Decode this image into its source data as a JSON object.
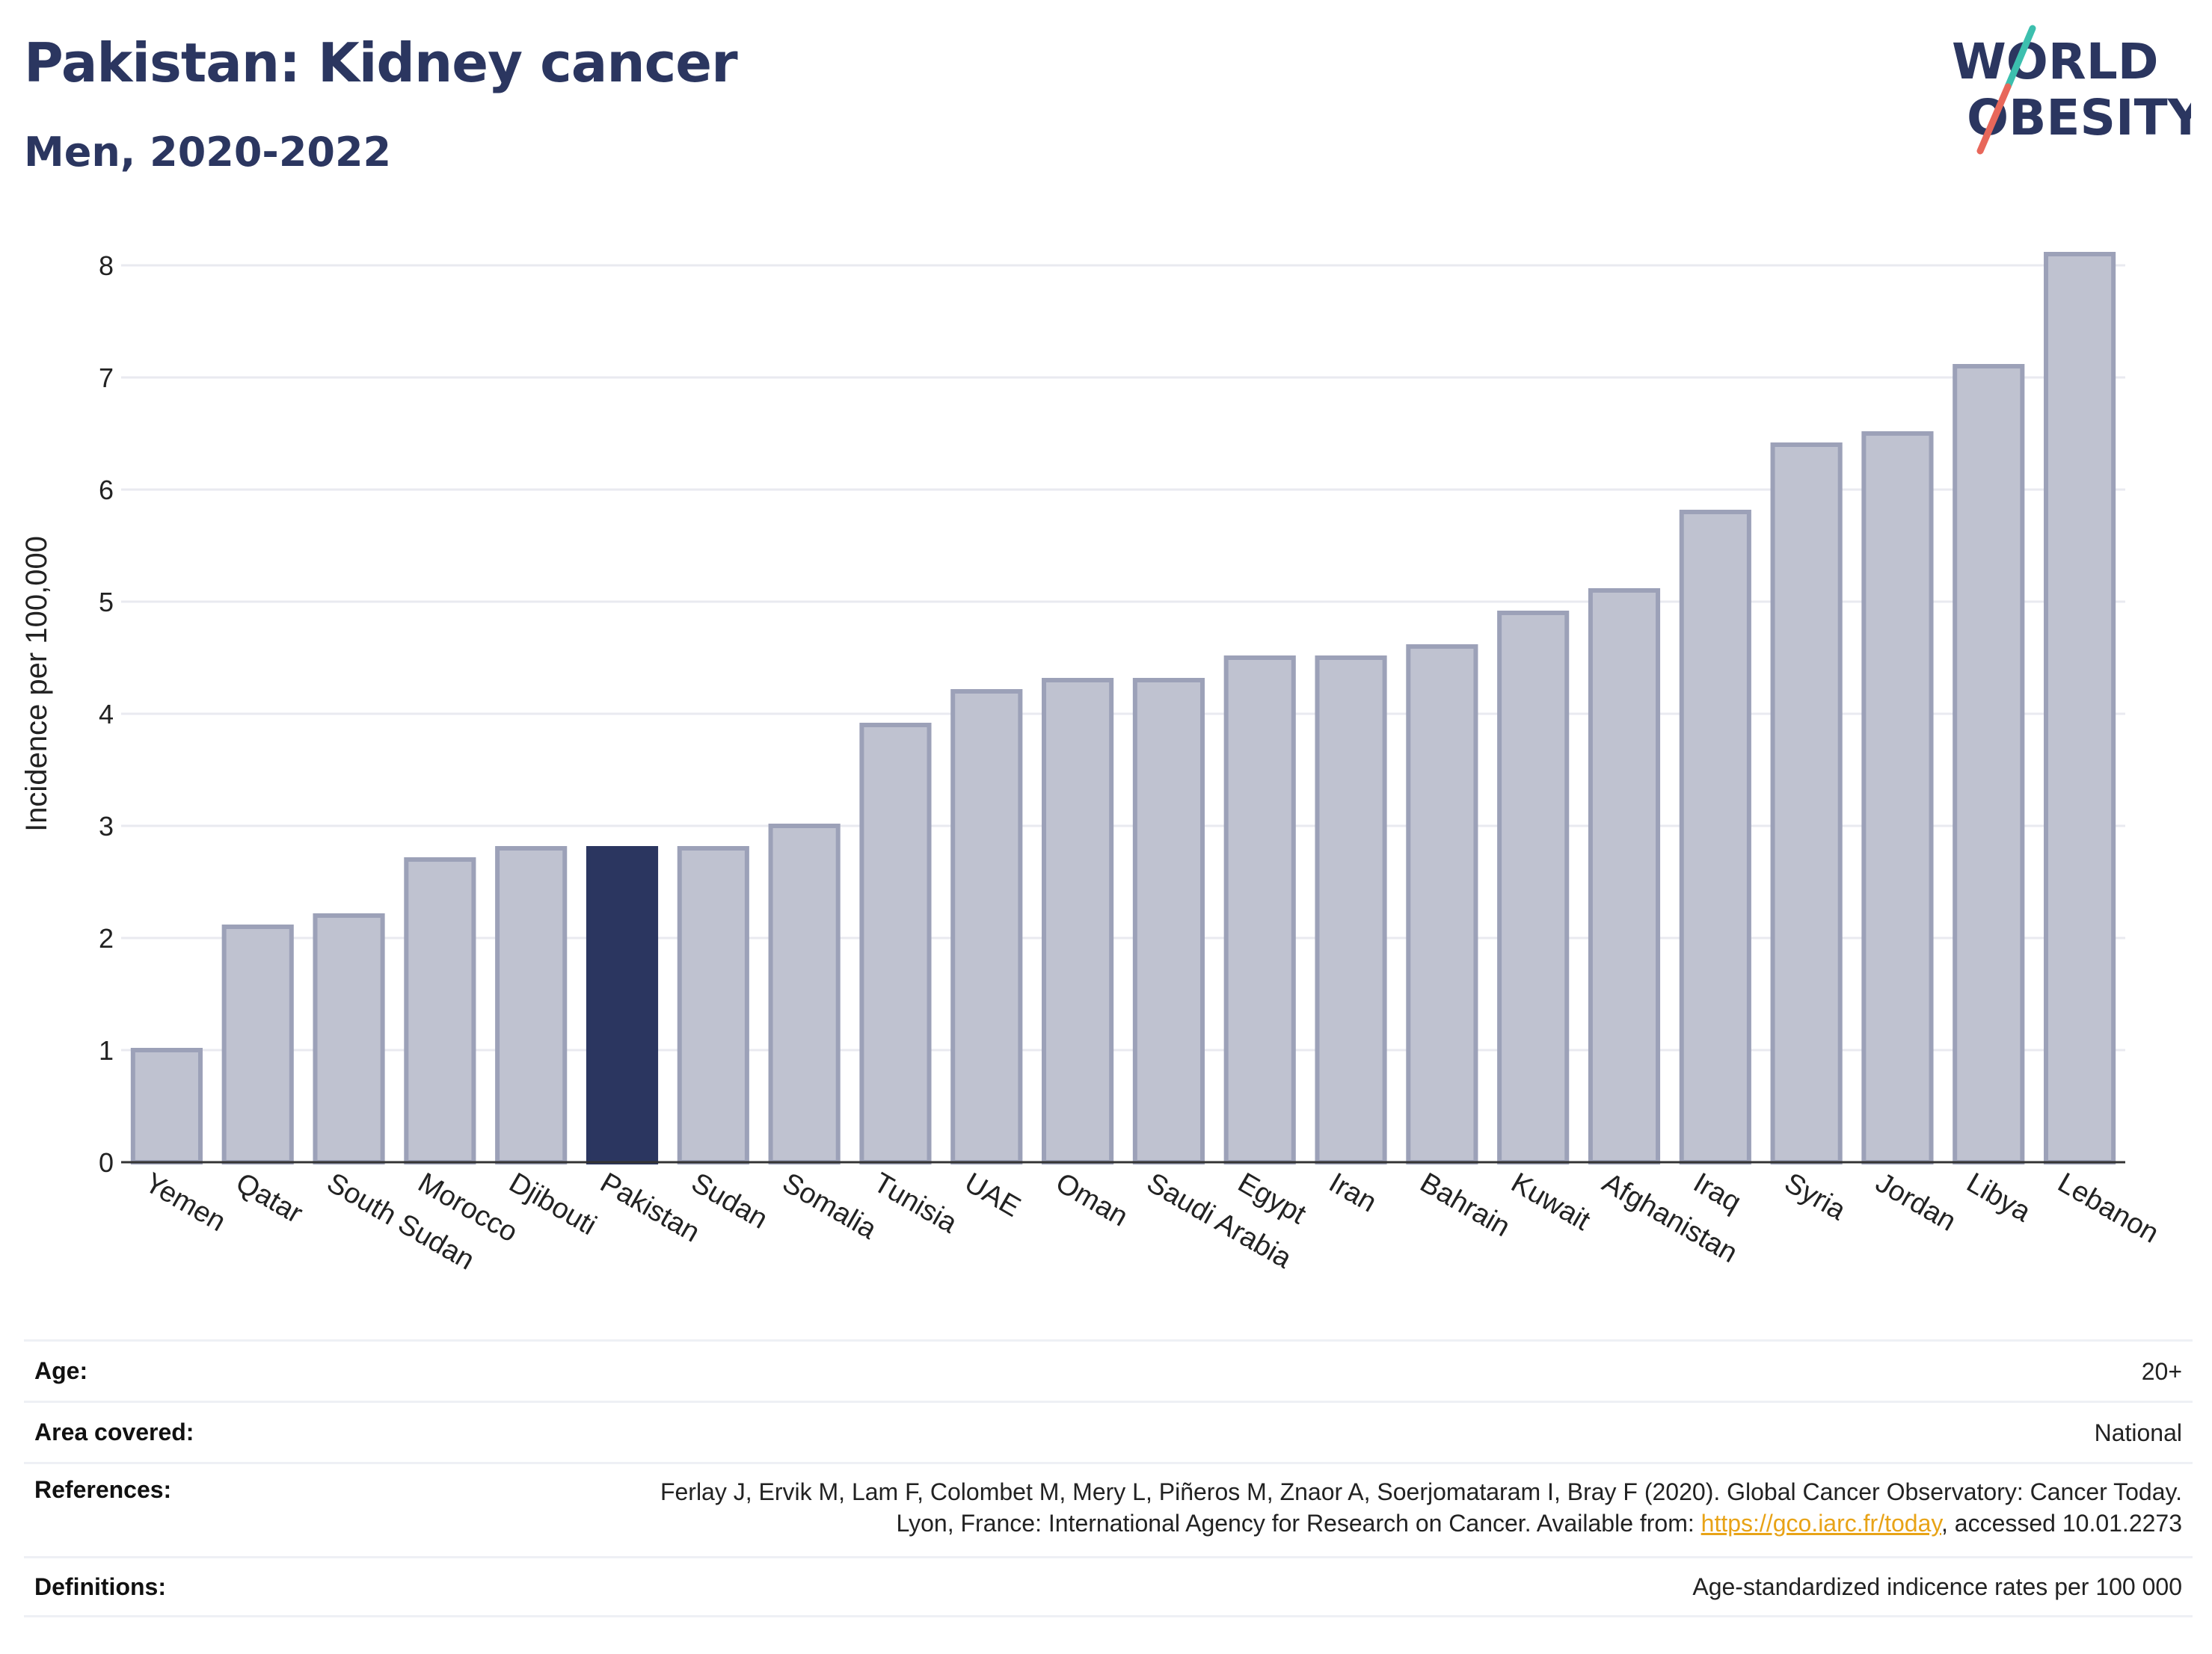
{
  "header": {
    "title": "Pakistan: Kidney cancer",
    "subtitle": "Men, 2020-2022"
  },
  "logo": {
    "line1": "WORLD",
    "line2": "OBESITY",
    "colors": {
      "text": "#2b3660",
      "slash_top": "#3cbfae",
      "slash_bottom": "#e8675a"
    }
  },
  "colors": {
    "bar_default": "#bfc2d0",
    "bar_stroke": "#9ca1b8",
    "bar_highlight": "#2b3660",
    "grid": "#e9eaf0",
    "axis": "#333333"
  },
  "chart_data": {
    "type": "bar",
    "title": "",
    "xlabel": "",
    "ylabel": "Incidence per 100,000",
    "ylim": [
      0,
      8.3
    ],
    "yticks": [
      0,
      1,
      2,
      3,
      4,
      5,
      6,
      7,
      8
    ],
    "grid": true,
    "highlight": "Pakistan",
    "categories": [
      "Yemen",
      "Qatar",
      "South Sudan",
      "Morocco",
      "Djibouti",
      "Pakistan",
      "Sudan",
      "Somalia",
      "Tunisia",
      "UAE",
      "Oman",
      "Saudi Arabia",
      "Egypt",
      "Iran",
      "Bahrain",
      "Kuwait",
      "Afghanistan",
      "Iraq",
      "Syria",
      "Jordan",
      "Libya",
      "Lebanon"
    ],
    "values": [
      1.0,
      2.1,
      2.2,
      2.7,
      2.8,
      2.8,
      2.8,
      3.0,
      3.9,
      4.2,
      4.3,
      4.3,
      4.5,
      4.5,
      4.6,
      4.9,
      5.1,
      5.8,
      6.4,
      6.5,
      7.1,
      8.1
    ]
  },
  "meta": [
    {
      "label": "Age:",
      "value": "20+"
    },
    {
      "label": "Area covered:",
      "value": "National"
    },
    {
      "label": "References:",
      "value_pre": "Ferlay J, Ervik M, Lam F, Colombet M, Mery L, Piñeros M, Znaor A, Soerjomataram I, Bray F (2020). Global Cancer Observatory: Cancer Today. Lyon, France: International Agency for Research on Cancer. Available from: ",
      "link": "https://gco.iarc.fr/today",
      "value_post": ", accessed 10.01.2273"
    },
    {
      "label": "Definitions:",
      "value": "Age-standardized indicence rates per 100 000"
    }
  ]
}
